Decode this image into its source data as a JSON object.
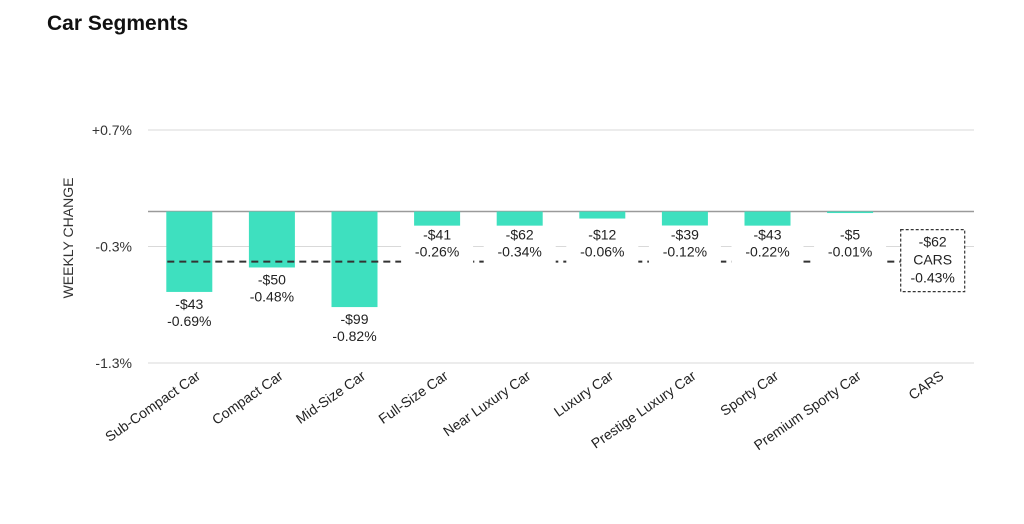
{
  "title": "Car Segments",
  "chart_data": {
    "type": "bar",
    "ylabel": "WEEKLY CHANGE",
    "ylim": [
      -1.3,
      0.7
    ],
    "yticks": [
      0.7,
      -0.3,
      -1.3
    ],
    "ytick_labels": [
      "+0.7%",
      "-0.3%",
      "-1.3%"
    ],
    "grid": true,
    "bar_color": "#3ee0bf",
    "reference_line": {
      "label": "CARS",
      "value": -0.43,
      "dollar": "-$62",
      "style": "dashed"
    },
    "categories": [
      "Sub-Compact Car",
      "Compact Car",
      "Mid-Size Car",
      "Full-Size Car",
      "Near Luxury Car",
      "Luxury Car",
      "Prestige Luxury Car",
      "Sporty Car",
      "Premium Sporty Car",
      "CARS"
    ],
    "values": [
      -0.69,
      -0.48,
      -0.82,
      -0.26,
      -0.34,
      -0.06,
      -0.12,
      -0.22,
      -0.01,
      null
    ],
    "dollar_labels": [
      "-$43",
      "-$50",
      "-$99",
      "-$41",
      "-$62",
      "-$12",
      "-$39",
      "-$43",
      "-$5",
      "-$62"
    ],
    "pct_labels": [
      "-0.69%",
      "-0.48%",
      "-0.82%",
      "-0.26%",
      "-0.34%",
      "-0.06%",
      "-0.12%",
      "-0.22%",
      "-0.01%",
      "-0.43%"
    ]
  }
}
